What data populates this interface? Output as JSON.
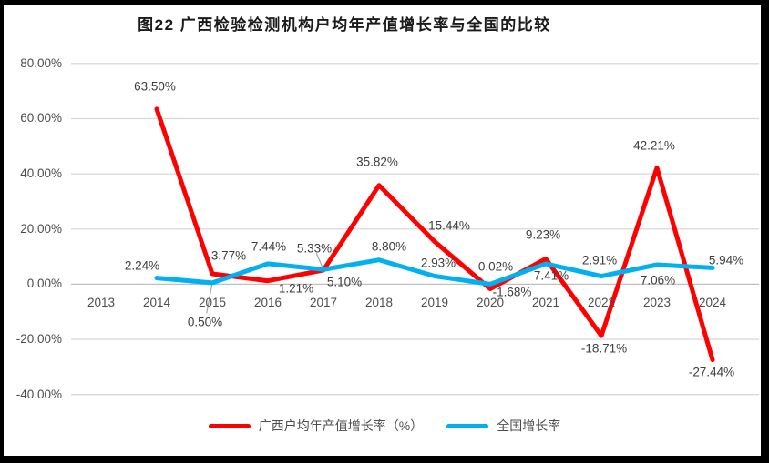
{
  "chart_data": {
    "type": "line",
    "title": "图22 广西检验检测机构户均年产值增长率与全国的比较",
    "categories": [
      "2013",
      "2014",
      "2015",
      "2016",
      "2017",
      "2018",
      "2019",
      "2020",
      "2021",
      "2022",
      "2023",
      "2024"
    ],
    "series": [
      {
        "id": "guangxi",
        "name": "广西户均年产值增长率（%）",
        "color": "#FF0000",
        "values": [
          null,
          63.5,
          3.77,
          1.21,
          5.1,
          35.82,
          15.44,
          -1.68,
          9.23,
          -18.71,
          42.21,
          -27.44
        ],
        "label_offsets": [
          null,
          [
            -2,
            -25
          ],
          [
            18,
            -20
          ],
          [
            31,
            8
          ],
          [
            23,
            13
          ],
          [
            -2,
            -26
          ],
          [
            16,
            -18
          ],
          [
            24,
            4
          ],
          [
            -3,
            -26
          ],
          [
            3,
            14
          ],
          [
            -3,
            -24
          ],
          [
            -1,
            13
          ]
        ]
      },
      {
        "id": "national",
        "name": "全国增长率",
        "color": "#00B0F0",
        "values": [
          null,
          2.24,
          0.5,
          7.44,
          5.33,
          8.8,
          2.93,
          0.02,
          7.41,
          2.91,
          7.06,
          5.94
        ],
        "label_offsets": [
          null,
          [
            -16,
            -14
          ],
          [
            -8,
            43
          ],
          [
            1,
            -19
          ],
          [
            -10,
            -23
          ],
          [
            11,
            -15
          ],
          [
            4,
            -15
          ],
          [
            6,
            -19
          ],
          [
            6,
            13
          ],
          [
            -2,
            -18
          ],
          [
            1,
            17
          ],
          [
            15,
            -8
          ]
        ]
      }
    ],
    "ylim": [
      -40,
      80
    ],
    "ytick_step": 20,
    "ytick_format": "0.00%",
    "grid": true,
    "gridline_color": "#D9D9D9",
    "axis_line_color": "#BFBFBF",
    "leader_line_color": "#A6A6A6",
    "legend_position": "bottom",
    "leader_lines": [
      {
        "series": 1,
        "index": 2
      },
      {
        "series": 1,
        "index": 4
      }
    ]
  }
}
